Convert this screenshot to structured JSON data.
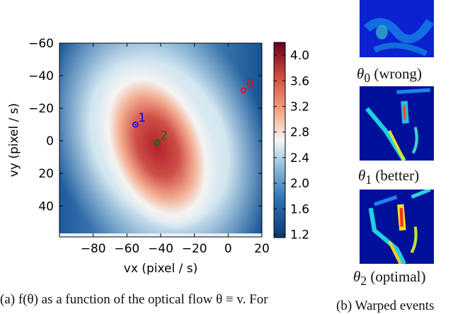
{
  "chart_data": {
    "type": "heatmap",
    "title": "",
    "xlabel": "vx (pixel / s)",
    "ylabel": "vy (pixel / s)",
    "xlim": [
      -100,
      20
    ],
    "ylim": [
      59,
      -60
    ],
    "xticks": [
      "-80",
      "-60",
      "-40",
      "-20",
      "0",
      "20"
    ],
    "xtick_values": [
      -80,
      -60,
      -40,
      -20,
      0,
      20
    ],
    "yticks": [
      "-60",
      "-40",
      "-20",
      "0",
      "20",
      "40"
    ],
    "ytick_values": [
      -60,
      -40,
      -20,
      0,
      20,
      40
    ],
    "colorbar": {
      "ticks": [
        "4.0",
        "3.6",
        "3.2",
        "2.8",
        "2.4",
        "2.0",
        "1.6",
        "1.2"
      ],
      "tick_values": [
        4.0,
        3.6,
        3.2,
        2.8,
        2.4,
        2.0,
        1.6,
        1.2
      ],
      "range": [
        1.15,
        4.2
      ],
      "colormap": "RdBu_r"
    },
    "peak": {
      "vx": -40,
      "vy": 4,
      "value": 4.1
    },
    "points": [
      {
        "label": "0",
        "vx": 9,
        "vy": -31,
        "color": "#ff0000"
      },
      {
        "label": "1",
        "vx": -55,
        "vy": -10,
        "color": "#0000ff"
      },
      {
        "label": "2",
        "vx": -42,
        "vy": 1,
        "color": "#007700"
      }
    ]
  },
  "panels": [
    {
      "label_sym": "θ",
      "label_sub": "0",
      "label_text": " (wrong)"
    },
    {
      "label_sym": "θ",
      "label_sub": "1",
      "label_text": " (better)"
    },
    {
      "label_sym": "θ",
      "label_sub": "2",
      "label_text": " (optimal)"
    }
  ],
  "captions": {
    "a": "(a) f(θ) as a function of the optical flow θ ≡ v. For",
    "b": "(b)  Warped  events"
  }
}
